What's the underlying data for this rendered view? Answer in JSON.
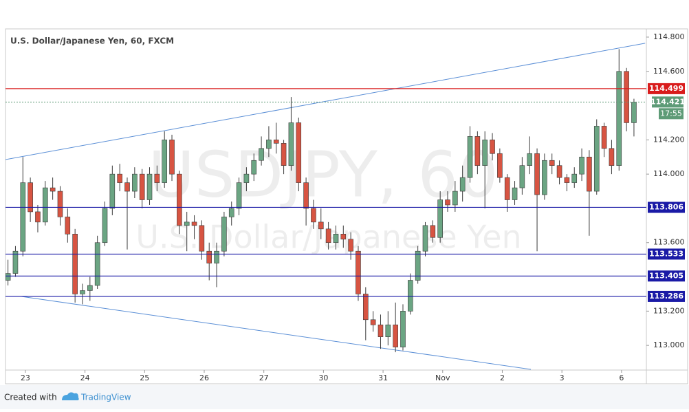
{
  "chart_data": {
    "type": "candlestick",
    "title": "U.S. Dollar/Japanese Yen, 60, FXCM",
    "watermark": "USDJPY, 60",
    "watermark_subtitle": "U.S. Dollar/Japanese Yen",
    "footer": {
      "text": "Created with",
      "brand": "TradingView"
    },
    "up_color": "#6ba583",
    "down_color": "#d75442",
    "xlim": [
      -8,
      250
    ],
    "ylim": [
      112.856,
      114.848
    ],
    "xticks": [
      {
        "value": 0,
        "label": "23"
      },
      {
        "value": 24,
        "label": "24"
      },
      {
        "value": 48,
        "label": "25"
      },
      {
        "value": 72,
        "label": "26"
      },
      {
        "value": 96,
        "label": "27"
      },
      {
        "value": 120,
        "label": "30"
      },
      {
        "value": 144,
        "label": "31"
      },
      {
        "value": 168,
        "label": "Nov"
      },
      {
        "value": 192,
        "label": "2"
      },
      {
        "value": 216,
        "label": "3"
      },
      {
        "value": 240,
        "label": "6"
      }
    ],
    "yticks": [
      {
        "value": 114.8,
        "label": "114.800"
      },
      {
        "value": 114.6,
        "label": "114.600"
      },
      {
        "value": 114.2,
        "label": "114.200"
      },
      {
        "value": 114,
        "label": "114.000"
      },
      {
        "value": 113.6,
        "label": "113.600"
      },
      {
        "value": 113.2,
        "label": "113.200"
      },
      {
        "value": 113,
        "label": "113.000"
      }
    ],
    "x": [
      -7,
      -4,
      -1,
      2,
      5,
      8,
      11,
      14,
      17,
      20,
      23,
      26,
      29,
      32,
      35,
      38,
      41,
      44,
      47,
      50,
      53,
      56,
      59,
      62,
      65,
      68,
      71,
      74,
      77,
      80,
      83,
      86,
      89,
      92,
      95,
      98,
      101,
      104,
      107,
      110,
      113,
      116,
      119,
      122,
      125,
      128,
      131,
      134,
      137,
      140,
      143,
      146,
      149,
      152,
      155,
      158,
      161,
      164,
      167,
      170,
      173,
      176,
      179,
      182,
      185,
      188,
      191,
      194,
      197,
      200,
      203,
      206,
      209,
      212,
      215,
      218,
      221,
      224,
      227,
      230,
      233,
      236,
      239,
      242,
      245
    ],
    "ohlc": [
      [
        113.38,
        113.5,
        113.35,
        113.42
      ],
      [
        113.42,
        113.58,
        113.4,
        113.55
      ],
      [
        113.55,
        114.1,
        113.52,
        113.95
      ],
      [
        113.95,
        113.98,
        113.72,
        113.78
      ],
      [
        113.78,
        113.82,
        113.66,
        113.72
      ],
      [
        113.72,
        113.96,
        113.7,
        113.92
      ],
      [
        113.92,
        113.98,
        113.85,
        113.9
      ],
      [
        113.9,
        113.93,
        113.7,
        113.75
      ],
      [
        113.75,
        113.8,
        113.6,
        113.65
      ],
      [
        113.65,
        113.68,
        113.25,
        113.3
      ],
      [
        113.3,
        113.36,
        113.24,
        113.32
      ],
      [
        113.32,
        113.4,
        113.26,
        113.35
      ],
      [
        113.35,
        113.64,
        113.33,
        113.6
      ],
      [
        113.6,
        113.84,
        113.58,
        113.8
      ],
      [
        113.8,
        114.05,
        113.76,
        114.0
      ],
      [
        114.0,
        114.06,
        113.9,
        113.95
      ],
      [
        113.95,
        113.98,
        113.56,
        113.9
      ],
      [
        113.9,
        114.04,
        113.86,
        114.0
      ],
      [
        114.0,
        114.03,
        113.8,
        113.85
      ],
      [
        113.85,
        114.04,
        113.82,
        114.0
      ],
      [
        114.0,
        114.05,
        113.9,
        113.95
      ],
      [
        113.95,
        114.25,
        113.92,
        114.2
      ],
      [
        114.2,
        114.23,
        113.96,
        114.0
      ],
      [
        114.0,
        114.02,
        113.65,
        113.7
      ],
      [
        113.7,
        113.78,
        113.55,
        113.72
      ],
      [
        113.72,
        113.76,
        113.62,
        113.7
      ],
      [
        113.7,
        113.73,
        113.5,
        113.55
      ],
      [
        113.55,
        113.6,
        113.38,
        113.48
      ],
      [
        113.48,
        113.6,
        113.34,
        113.55
      ],
      [
        113.55,
        113.78,
        113.52,
        113.75
      ],
      [
        113.75,
        113.84,
        113.7,
        113.8
      ],
      [
        113.8,
        113.98,
        113.76,
        113.95
      ],
      [
        113.95,
        114.04,
        113.9,
        114.0
      ],
      [
        114.0,
        114.12,
        113.96,
        114.08
      ],
      [
        114.08,
        114.22,
        114.05,
        114.15
      ],
      [
        114.15,
        114.28,
        114.1,
        114.2
      ],
      [
        114.2,
        114.3,
        114.12,
        114.18
      ],
      [
        114.18,
        114.2,
        114.0,
        114.05
      ],
      [
        114.05,
        114.45,
        114.02,
        114.3
      ],
      [
        114.3,
        114.33,
        113.9,
        113.95
      ],
      [
        113.95,
        113.98,
        113.7,
        113.8
      ],
      [
        113.8,
        113.85,
        113.68,
        113.72
      ],
      [
        113.72,
        113.8,
        113.62,
        113.68
      ],
      [
        113.68,
        113.72,
        113.56,
        113.6
      ],
      [
        113.6,
        113.7,
        113.56,
        113.65
      ],
      [
        113.65,
        113.7,
        113.57,
        113.62
      ],
      [
        113.62,
        113.66,
        113.5,
        113.55
      ],
      [
        113.55,
        113.58,
        113.26,
        113.3
      ],
      [
        113.3,
        113.34,
        113.03,
        113.15
      ],
      [
        113.15,
        113.2,
        113.08,
        113.12
      ],
      [
        113.12,
        113.18,
        112.98,
        113.05
      ],
      [
        113.05,
        113.2,
        113.0,
        113.12
      ],
      [
        113.12,
        113.25,
        112.96,
        112.99
      ],
      [
        112.99,
        113.24,
        112.97,
        113.2
      ],
      [
        113.2,
        113.42,
        113.18,
        113.38
      ],
      [
        113.38,
        113.58,
        113.36,
        113.55
      ],
      [
        113.55,
        113.72,
        113.52,
        113.7
      ],
      [
        113.7,
        113.73,
        113.6,
        113.63
      ],
      [
        113.63,
        113.9,
        113.6,
        113.85
      ],
      [
        113.85,
        113.9,
        113.78,
        113.82
      ],
      [
        113.82,
        113.96,
        113.78,
        113.9
      ],
      [
        113.9,
        114.05,
        113.84,
        113.98
      ],
      [
        113.98,
        114.28,
        113.95,
        114.22
      ],
      [
        114.22,
        114.25,
        114.0,
        114.05
      ],
      [
        114.05,
        114.25,
        113.8,
        114.2
      ],
      [
        114.2,
        114.24,
        114.08,
        114.12
      ],
      [
        114.12,
        114.15,
        113.95,
        113.98
      ],
      [
        113.98,
        114.0,
        113.78,
        113.85
      ],
      [
        113.85,
        113.96,
        113.82,
        113.92
      ],
      [
        113.92,
        114.1,
        113.88,
        114.05
      ],
      [
        114.05,
        114.22,
        114.0,
        114.12
      ],
      [
        114.12,
        114.15,
        113.55,
        113.88
      ],
      [
        113.88,
        114.12,
        113.85,
        114.08
      ],
      [
        114.08,
        114.12,
        114.0,
        114.05
      ],
      [
        114.05,
        114.08,
        113.94,
        113.98
      ],
      [
        113.98,
        114.0,
        113.9,
        113.95
      ],
      [
        113.95,
        114.04,
        113.92,
        114.0
      ],
      [
        114.0,
        114.15,
        113.96,
        114.1
      ],
      [
        114.1,
        114.14,
        113.64,
        113.9
      ],
      [
        113.9,
        114.32,
        113.88,
        114.28
      ],
      [
        114.28,
        114.3,
        114.1,
        114.15
      ],
      [
        114.15,
        114.2,
        114.0,
        114.05
      ],
      [
        114.05,
        114.73,
        114.02,
        114.6
      ],
      [
        114.6,
        114.62,
        114.25,
        114.3
      ],
      [
        114.3,
        114.44,
        114.22,
        114.42
      ]
    ],
    "levels": [
      {
        "value": 114.499,
        "color": "#d91c1c"
      },
      {
        "value": 113.806,
        "color": "#1a1aa6"
      },
      {
        "value": 113.533,
        "color": "#1a1aa6"
      },
      {
        "value": 113.405,
        "color": "#1a1aa6"
      },
      {
        "value": 113.286,
        "color": "#1a1aa6"
      }
    ],
    "current_price": 114.421,
    "countdown": "17:55",
    "current_color": "#5e9b77",
    "trend_lines": [
      {
        "color": "#5b8fd6",
        "x": [
          -8,
          249.5
        ],
        "y": [
          114.085,
          114.764
        ]
      },
      {
        "color": "#5b8fd6",
        "x": [
          -1.9,
          203.5
        ],
        "y": [
          113.286,
          112.86
        ]
      }
    ]
  }
}
